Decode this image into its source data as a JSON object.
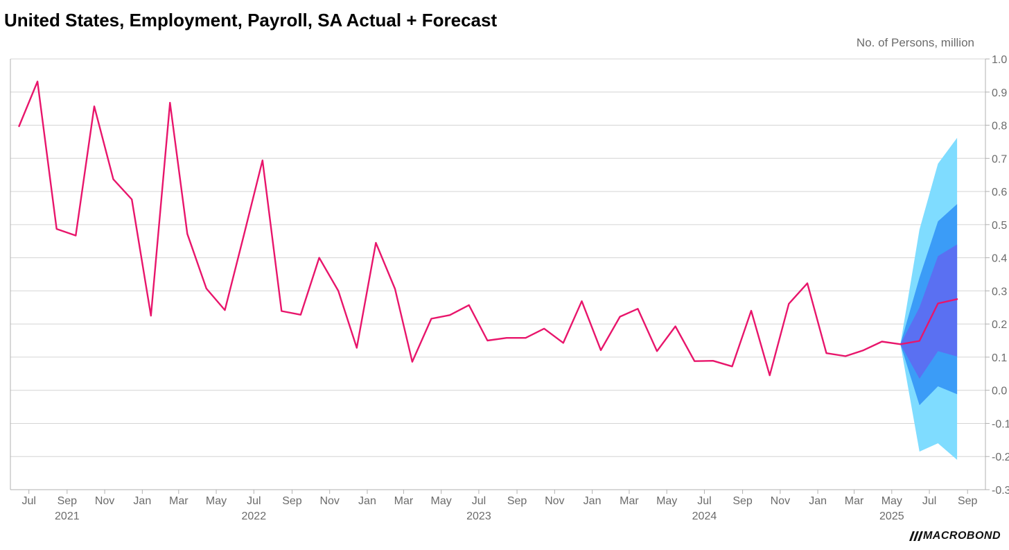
{
  "header": {
    "title": "United States, Employment, Payroll, SA Actual + Forecast",
    "unit_label": "No. of Persons, million"
  },
  "brand": {
    "logo_text": "MACROBOND"
  },
  "colors": {
    "actual": "#e8156b",
    "band_outer": "#7fdcff",
    "band_mid": "#3b9cf7",
    "band_inner": "#5a70f2",
    "grid": "#d4d4d4",
    "axis": "#b0b0b0"
  },
  "chart_data": {
    "type": "line",
    "title": "United States, Employment, Payroll, SA Actual + Forecast",
    "ylabel": "No. of Persons, million",
    "ylim": [
      -0.3,
      1.0
    ],
    "yticks": [
      "1.0",
      "0.9",
      "0.8",
      "0.7",
      "0.6",
      "0.5",
      "0.4",
      "0.3",
      "0.2",
      "0.1",
      "0.0",
      "-0.1",
      "-0.2",
      "-0.3"
    ],
    "xlim": [
      "2021-06-01",
      "2025-09-30"
    ],
    "xticks": [
      {
        "date": "2021-07-01",
        "label": "Jul"
      },
      {
        "date": "2021-09-01",
        "label": "Sep"
      },
      {
        "date": "2021-11-01",
        "label": "Nov"
      },
      {
        "date": "2022-01-01",
        "label": "Jan"
      },
      {
        "date": "2022-03-01",
        "label": "Mar"
      },
      {
        "date": "2022-05-01",
        "label": "May"
      },
      {
        "date": "2022-07-01",
        "label": "Jul"
      },
      {
        "date": "2022-09-01",
        "label": "Sep"
      },
      {
        "date": "2022-11-01",
        "label": "Nov"
      },
      {
        "date": "2023-01-01",
        "label": "Jan"
      },
      {
        "date": "2023-03-01",
        "label": "Mar"
      },
      {
        "date": "2023-05-01",
        "label": "May"
      },
      {
        "date": "2023-07-01",
        "label": "Jul"
      },
      {
        "date": "2023-09-01",
        "label": "Sep"
      },
      {
        "date": "2023-11-01",
        "label": "Nov"
      },
      {
        "date": "2024-01-01",
        "label": "Jan"
      },
      {
        "date": "2024-03-01",
        "label": "Mar"
      },
      {
        "date": "2024-05-01",
        "label": "May"
      },
      {
        "date": "2024-07-01",
        "label": "Jul"
      },
      {
        "date": "2024-09-01",
        "label": "Sep"
      },
      {
        "date": "2024-11-01",
        "label": "Nov"
      },
      {
        "date": "2025-01-01",
        "label": "Jan"
      },
      {
        "date": "2025-03-01",
        "label": "Mar"
      },
      {
        "date": "2025-05-01",
        "label": "May"
      },
      {
        "date": "2025-07-01",
        "label": "Jul"
      },
      {
        "date": "2025-09-01",
        "label": "Sep"
      }
    ],
    "year_labels": [
      {
        "date": "2021-09-01",
        "label": "2021"
      },
      {
        "date": "2022-07-01",
        "label": "2022"
      },
      {
        "date": "2023-07-01",
        "label": "2023"
      },
      {
        "date": "2024-07-01",
        "label": "2024"
      },
      {
        "date": "2025-05-01",
        "label": "2025"
      }
    ],
    "grid": true,
    "series": [
      {
        "x": [
          "2021-06-15",
          "2021-07-15",
          "2021-08-15",
          "2021-09-15",
          "2021-10-15",
          "2021-11-15",
          "2021-12-15",
          "2022-01-15",
          "2022-02-15",
          "2022-03-15",
          "2022-04-15",
          "2022-05-15",
          "2022-06-15",
          "2022-07-15",
          "2022-08-15",
          "2022-09-15",
          "2022-10-15",
          "2022-11-15",
          "2022-12-15",
          "2023-01-15",
          "2023-02-15",
          "2023-03-15",
          "2023-04-15",
          "2023-05-15",
          "2023-06-15",
          "2023-07-15",
          "2023-08-15",
          "2023-09-15",
          "2023-10-15",
          "2023-11-15",
          "2023-12-15",
          "2024-01-15",
          "2024-02-15",
          "2024-03-15",
          "2024-04-15",
          "2024-05-15",
          "2024-06-15",
          "2024-07-15",
          "2024-08-15",
          "2024-09-15",
          "2024-10-15",
          "2024-11-15",
          "2024-12-15",
          "2025-01-15",
          "2025-02-15",
          "2025-03-15",
          "2025-04-15",
          "2025-05-15",
          "2025-06-15",
          "2025-07-15",
          "2025-08-15"
        ],
        "values": [
          0.797,
          0.932,
          0.487,
          0.467,
          0.857,
          0.637,
          0.576,
          0.225,
          0.868,
          0.472,
          0.307,
          0.242,
          0.47,
          0.694,
          0.239,
          0.228,
          0.4,
          0.3,
          0.128,
          0.445,
          0.306,
          0.086,
          0.216,
          0.227,
          0.257,
          0.15,
          0.158,
          0.158,
          0.186,
          0.143,
          0.269,
          0.121,
          0.222,
          0.246,
          0.118,
          0.193,
          0.088,
          0.089,
          0.072,
          0.24,
          0.045,
          0.261,
          0.323,
          0.112,
          0.103,
          0.12,
          0.147,
          0.139,
          0.149,
          0.262,
          0.275
        ]
      }
    ],
    "forecast_bands": {
      "x": [
        "2025-05-15",
        "2025-06-15",
        "2025-07-15",
        "2025-08-15"
      ],
      "outer_upper": [
        0.139,
        0.485,
        0.684,
        0.762
      ],
      "outer_lower": [
        0.139,
        -0.185,
        -0.16,
        -0.21
      ],
      "mid_upper": [
        0.139,
        0.34,
        0.51,
        0.562
      ],
      "mid_lower": [
        0.139,
        -0.045,
        0.012,
        -0.012
      ],
      "inner_upper": [
        0.139,
        0.25,
        0.405,
        0.44
      ],
      "inner_lower": [
        0.139,
        0.035,
        0.118,
        0.102
      ]
    }
  }
}
